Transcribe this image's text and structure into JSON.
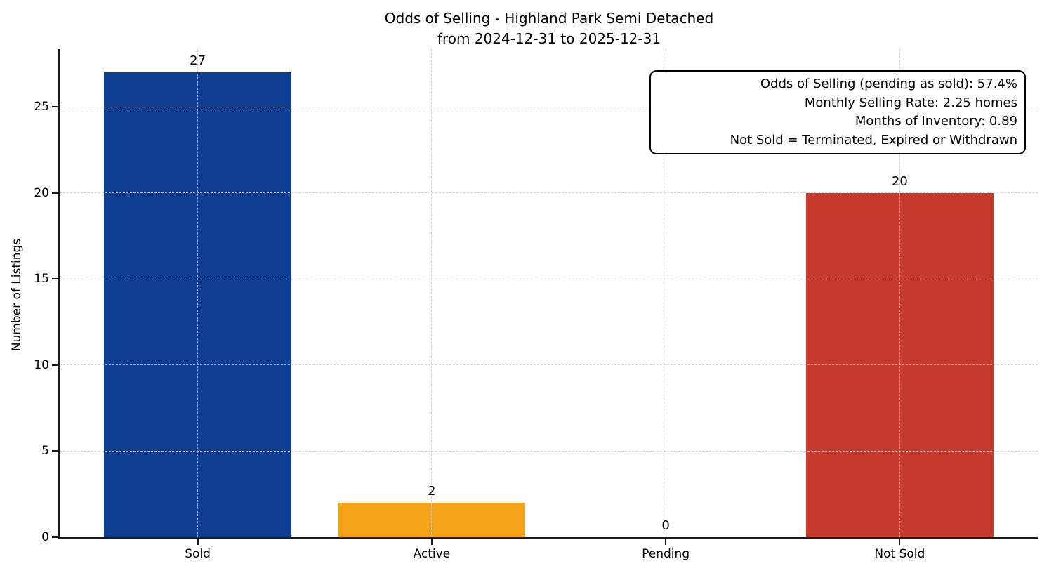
{
  "chart_data": {
    "type": "bar",
    "title": "Odds of Selling - Highland Park Semi Detached",
    "subtitle": "from 2024-12-31 to 2025-12-31",
    "ylabel": "Number of Listings",
    "xlabel": "",
    "categories": [
      "Sold",
      "Active",
      "Pending",
      "Not Sold"
    ],
    "values": [
      27,
      2,
      0,
      20
    ],
    "bar_colors": [
      "#0f3d91",
      "#f4a217",
      "#9e9e9e",
      "#c53a2c"
    ],
    "value_labels": [
      "27",
      "2",
      "0",
      "20"
    ],
    "yticks": [
      0,
      5,
      10,
      15,
      20,
      25
    ],
    "ylim": [
      0,
      28.35
    ],
    "xlim": [
      -0.59,
      3.59
    ],
    "bar_width": 0.8,
    "grid": "dashed-both-axes-drawn-above-bars",
    "legend_position": "none",
    "annotation": {
      "lines": [
        "Odds of Selling (pending as sold): 57.4%",
        "Monthly Selling Rate: 2.25 homes",
        "Months of Inventory: 0.89",
        "Not Sold = Terminated, Expired or Withdrawn"
      ]
    }
  },
  "colors": {
    "background": "#ffffff",
    "spine": "#1a1a1a",
    "grid": "#cdcdcd",
    "text": "#000000",
    "sold_bar": "#0f3d91",
    "active_bar": "#f4a217",
    "not_sold_bar": "#c53a2c"
  }
}
